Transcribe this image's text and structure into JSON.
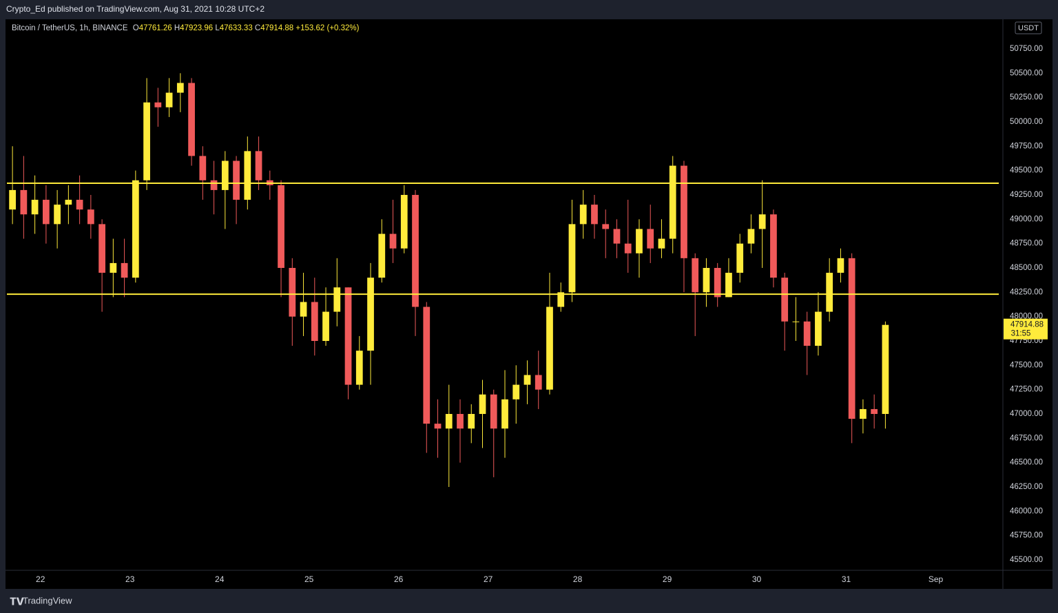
{
  "header": {
    "text": "Crypto_Ed published on TradingView.com, Aug 31, 2021 10:28 UTC+2"
  },
  "footer": {
    "brand": "TradingView"
  },
  "chart_data": {
    "type": "candlestick",
    "title": "Bitcoin / TetherUS, 1h, BINANCE",
    "ohlc": [
      {
        "label": "O",
        "value": 47761.26
      },
      {
        "label": "H",
        "value": 47923.96
      },
      {
        "label": "L",
        "value": 47633.33
      },
      {
        "label": "C",
        "value": 47914.88
      }
    ],
    "change": "+153.62 (+0.32%)",
    "currency": "USDT",
    "last_price": 47914.88,
    "countdown": "31:55",
    "up_color": "#ffeb3b",
    "down_color": "#f05a5a",
    "line_color": "#ffeb3b",
    "hlines": [
      49370,
      48230
    ],
    "categories": [
      null,
      null,
      null,
      "22",
      null,
      null,
      null,
      null,
      null,
      null,
      null,
      "23",
      null,
      null,
      null,
      null,
      null,
      null,
      null,
      "24",
      null,
      null,
      null,
      null,
      null,
      null,
      null,
      "25",
      null,
      null,
      null,
      null,
      null,
      null,
      null,
      "26",
      null,
      null,
      null,
      null,
      null,
      null,
      null,
      "27",
      null,
      null,
      null,
      null,
      null,
      null,
      null,
      "28",
      null,
      null,
      null,
      null,
      null,
      null,
      null,
      "29",
      null,
      null,
      null,
      null,
      null,
      null,
      null,
      "30",
      null,
      null,
      null,
      null,
      null,
      null,
      null,
      "31",
      null,
      null,
      null,
      null,
      null,
      null,
      null,
      "Sep",
      null,
      null,
      null,
      null,
      null
    ],
    "open": [
      49100,
      49300,
      49050,
      49200,
      48950,
      49150,
      49200,
      49100,
      48950,
      48450,
      48550,
      48400,
      49400,
      50200,
      50150,
      50300,
      50400,
      49650,
      49400,
      49300,
      49600,
      49200,
      49700,
      49400,
      49350,
      48500,
      48000,
      48150,
      47750,
      48050,
      48300,
      47300,
      47650,
      48400,
      48850,
      48700,
      49250,
      48100,
      46900,
      46850,
      47000,
      46850,
      47000,
      47200,
      46850,
      47150,
      47300,
      47400,
      47250,
      48100,
      48250,
      48950,
      49150,
      48950,
      48900,
      48750,
      48650,
      48900,
      48700,
      48800,
      49550,
      48600,
      48250,
      48500,
      48200,
      48450,
      48750,
      48900,
      49050,
      48400,
      47950,
      47950,
      47700,
      48050,
      48450,
      48600,
      46950,
      47050,
      47000,
      null,
      null,
      null,
      null,
      null,
      null,
      null,
      null,
      null,
      null
    ],
    "high": [
      49750,
      49650,
      49450,
      49350,
      49300,
      49350,
      49450,
      49250,
      49000,
      48800,
      48800,
      49500,
      50450,
      50350,
      50450,
      50500,
      50450,
      49750,
      49600,
      49700,
      49650,
      49850,
      49850,
      49500,
      49400,
      48600,
      48450,
      48400,
      48300,
      48600,
      48300,
      47800,
      48550,
      49000,
      49200,
      49350,
      49300,
      48150,
      47150,
      47300,
      47150,
      47100,
      47350,
      47250,
      47450,
      47500,
      47550,
      47650,
      48450,
      48350,
      49200,
      49300,
      49250,
      49100,
      49000,
      49200,
      49000,
      49150,
      49000,
      49650,
      49600,
      48650,
      48600,
      48550,
      48600,
      48850,
      49050,
      49400,
      49100,
      48450,
      48200,
      48050,
      48250,
      48600,
      48700,
      48650,
      47150,
      47200,
      47950,
      null,
      null,
      null,
      null,
      null,
      null,
      null,
      null,
      null,
      null
    ],
    "low": [
      48950,
      48800,
      48850,
      48750,
      48700,
      48950,
      48950,
      48800,
      48050,
      48200,
      48200,
      48350,
      49300,
      49950,
      50050,
      50100,
      49550,
      49200,
      49050,
      48900,
      48950,
      49100,
      49300,
      49200,
      48200,
      47700,
      47800,
      47600,
      47700,
      47900,
      47150,
      47250,
      47300,
      48350,
      48550,
      48650,
      47800,
      46600,
      46550,
      46250,
      46500,
      46700,
      46650,
      46350,
      46550,
      46900,
      47100,
      47050,
      47200,
      48050,
      48150,
      48800,
      48800,
      48600,
      48600,
      48450,
      48400,
      48550,
      48600,
      48650,
      48250,
      47800,
      48100,
      48100,
      48200,
      48350,
      48650,
      48500,
      48300,
      47650,
      47750,
      47400,
      47600,
      47950,
      48350,
      46700,
      46800,
      46850,
      46850,
      null,
      null,
      null,
      null,
      null,
      null,
      null,
      null,
      null,
      null
    ],
    "close": [
      49300,
      49050,
      49200,
      48950,
      49150,
      49200,
      49100,
      48950,
      48450,
      48550,
      48400,
      49400,
      50200,
      50150,
      50300,
      50400,
      49650,
      49400,
      49300,
      49600,
      49200,
      49700,
      49400,
      49350,
      48500,
      48000,
      48150,
      47750,
      48050,
      48300,
      47300,
      47650,
      48400,
      48850,
      48700,
      49250,
      48100,
      46900,
      46850,
      47000,
      46850,
      47000,
      47200,
      46850,
      47150,
      47300,
      47400,
      47250,
      48100,
      48250,
      48950,
      49150,
      48950,
      48900,
      48750,
      48650,
      48900,
      48700,
      48800,
      49550,
      48600,
      48250,
      48500,
      48200,
      48450,
      48750,
      48900,
      49050,
      48400,
      47950,
      47950,
      47700,
      48050,
      48450,
      48600,
      46950,
      47050,
      47000,
      47914.88,
      null,
      null,
      null,
      null,
      null,
      null,
      null,
      null,
      null,
      null
    ],
    "ylim": [
      45394,
      51054
    ],
    "yticks": [
      {
        "value": 45500,
        "label": "45500.00"
      },
      {
        "value": 45750,
        "label": "45750.00"
      },
      {
        "value": 46000,
        "label": "46000.00"
      },
      {
        "value": 46250,
        "label": "46250.00"
      },
      {
        "value": 46500,
        "label": "46500.00"
      },
      {
        "value": 46750,
        "label": "46750.00"
      },
      {
        "value": 47000,
        "label": "47000.00"
      },
      {
        "value": 47250,
        "label": "47250.00"
      },
      {
        "value": 47500,
        "label": "47500.00"
      },
      {
        "value": 47750,
        "label": "47750.00"
      },
      {
        "value": 48000,
        "label": "48000.00"
      },
      {
        "value": 48250,
        "label": "48250.00"
      },
      {
        "value": 48500,
        "label": "48500.00"
      },
      {
        "value": 48750,
        "label": "48750.00"
      },
      {
        "value": 49000,
        "label": "49000.00"
      },
      {
        "value": 49250,
        "label": "49250.00"
      },
      {
        "value": 49500,
        "label": "49500.00"
      },
      {
        "value": 49750,
        "label": "49750.00"
      },
      {
        "value": 50000,
        "label": "50000.00"
      },
      {
        "value": 50250,
        "label": "50250.00"
      },
      {
        "value": 50500,
        "label": "50500.00"
      },
      {
        "value": 50750,
        "label": "50750.00"
      }
    ],
    "grid": false
  }
}
